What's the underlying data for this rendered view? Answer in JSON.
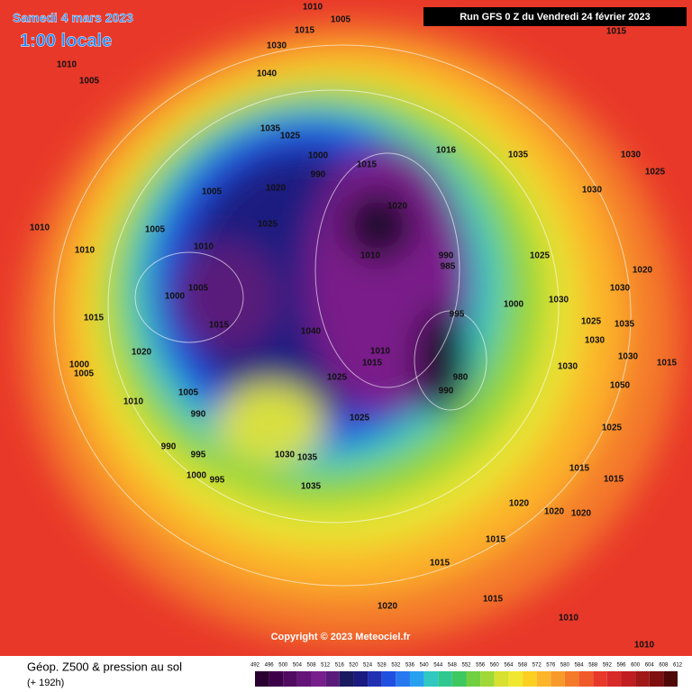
{
  "header": {
    "date": "Samedi 4 mars 2023",
    "time": "1:00 locale",
    "run": "Run GFS 0 Z du Vendredi 24 février 2023"
  },
  "footer": {
    "title": "Géop. Z500 & pression au sol",
    "lead": "(+ 192h)",
    "copyright": "Copyright © 2023 Meteociel.fr"
  },
  "colorbar": {
    "ticks": [
      492,
      496,
      500,
      504,
      508,
      512,
      516,
      520,
      524,
      528,
      532,
      536,
      540,
      544,
      548,
      552,
      556,
      560,
      564,
      568,
      572,
      576,
      580,
      584,
      588,
      592,
      596,
      600,
      604,
      608,
      612
    ]
  },
  "pressure_labels": [
    1010,
    1005,
    1015,
    1030,
    1040,
    1010,
    1005,
    1035,
    1025,
    1000,
    990,
    1015,
    1016,
    1035,
    1030,
    1025,
    1030,
    1005,
    1020,
    1020,
    1025,
    1010,
    1005,
    1010,
    1010,
    1010,
    990,
    985,
    1025,
    1020,
    1005,
    1000,
    1030,
    1030,
    1015,
    1015,
    995,
    1000,
    1035,
    1025,
    1040,
    1020,
    1010,
    1015,
    1030,
    1030,
    1015,
    1000,
    1005,
    1025,
    980,
    990,
    1030,
    1050,
    1010,
    1005,
    990,
    1025,
    1025,
    990,
    995,
    1030,
    1035,
    1015,
    1000,
    995,
    1035,
    1015,
    1020,
    1020,
    1020,
    1015,
    1015,
    1015,
    1020,
    1010,
    1010,
    1015
  ]
}
